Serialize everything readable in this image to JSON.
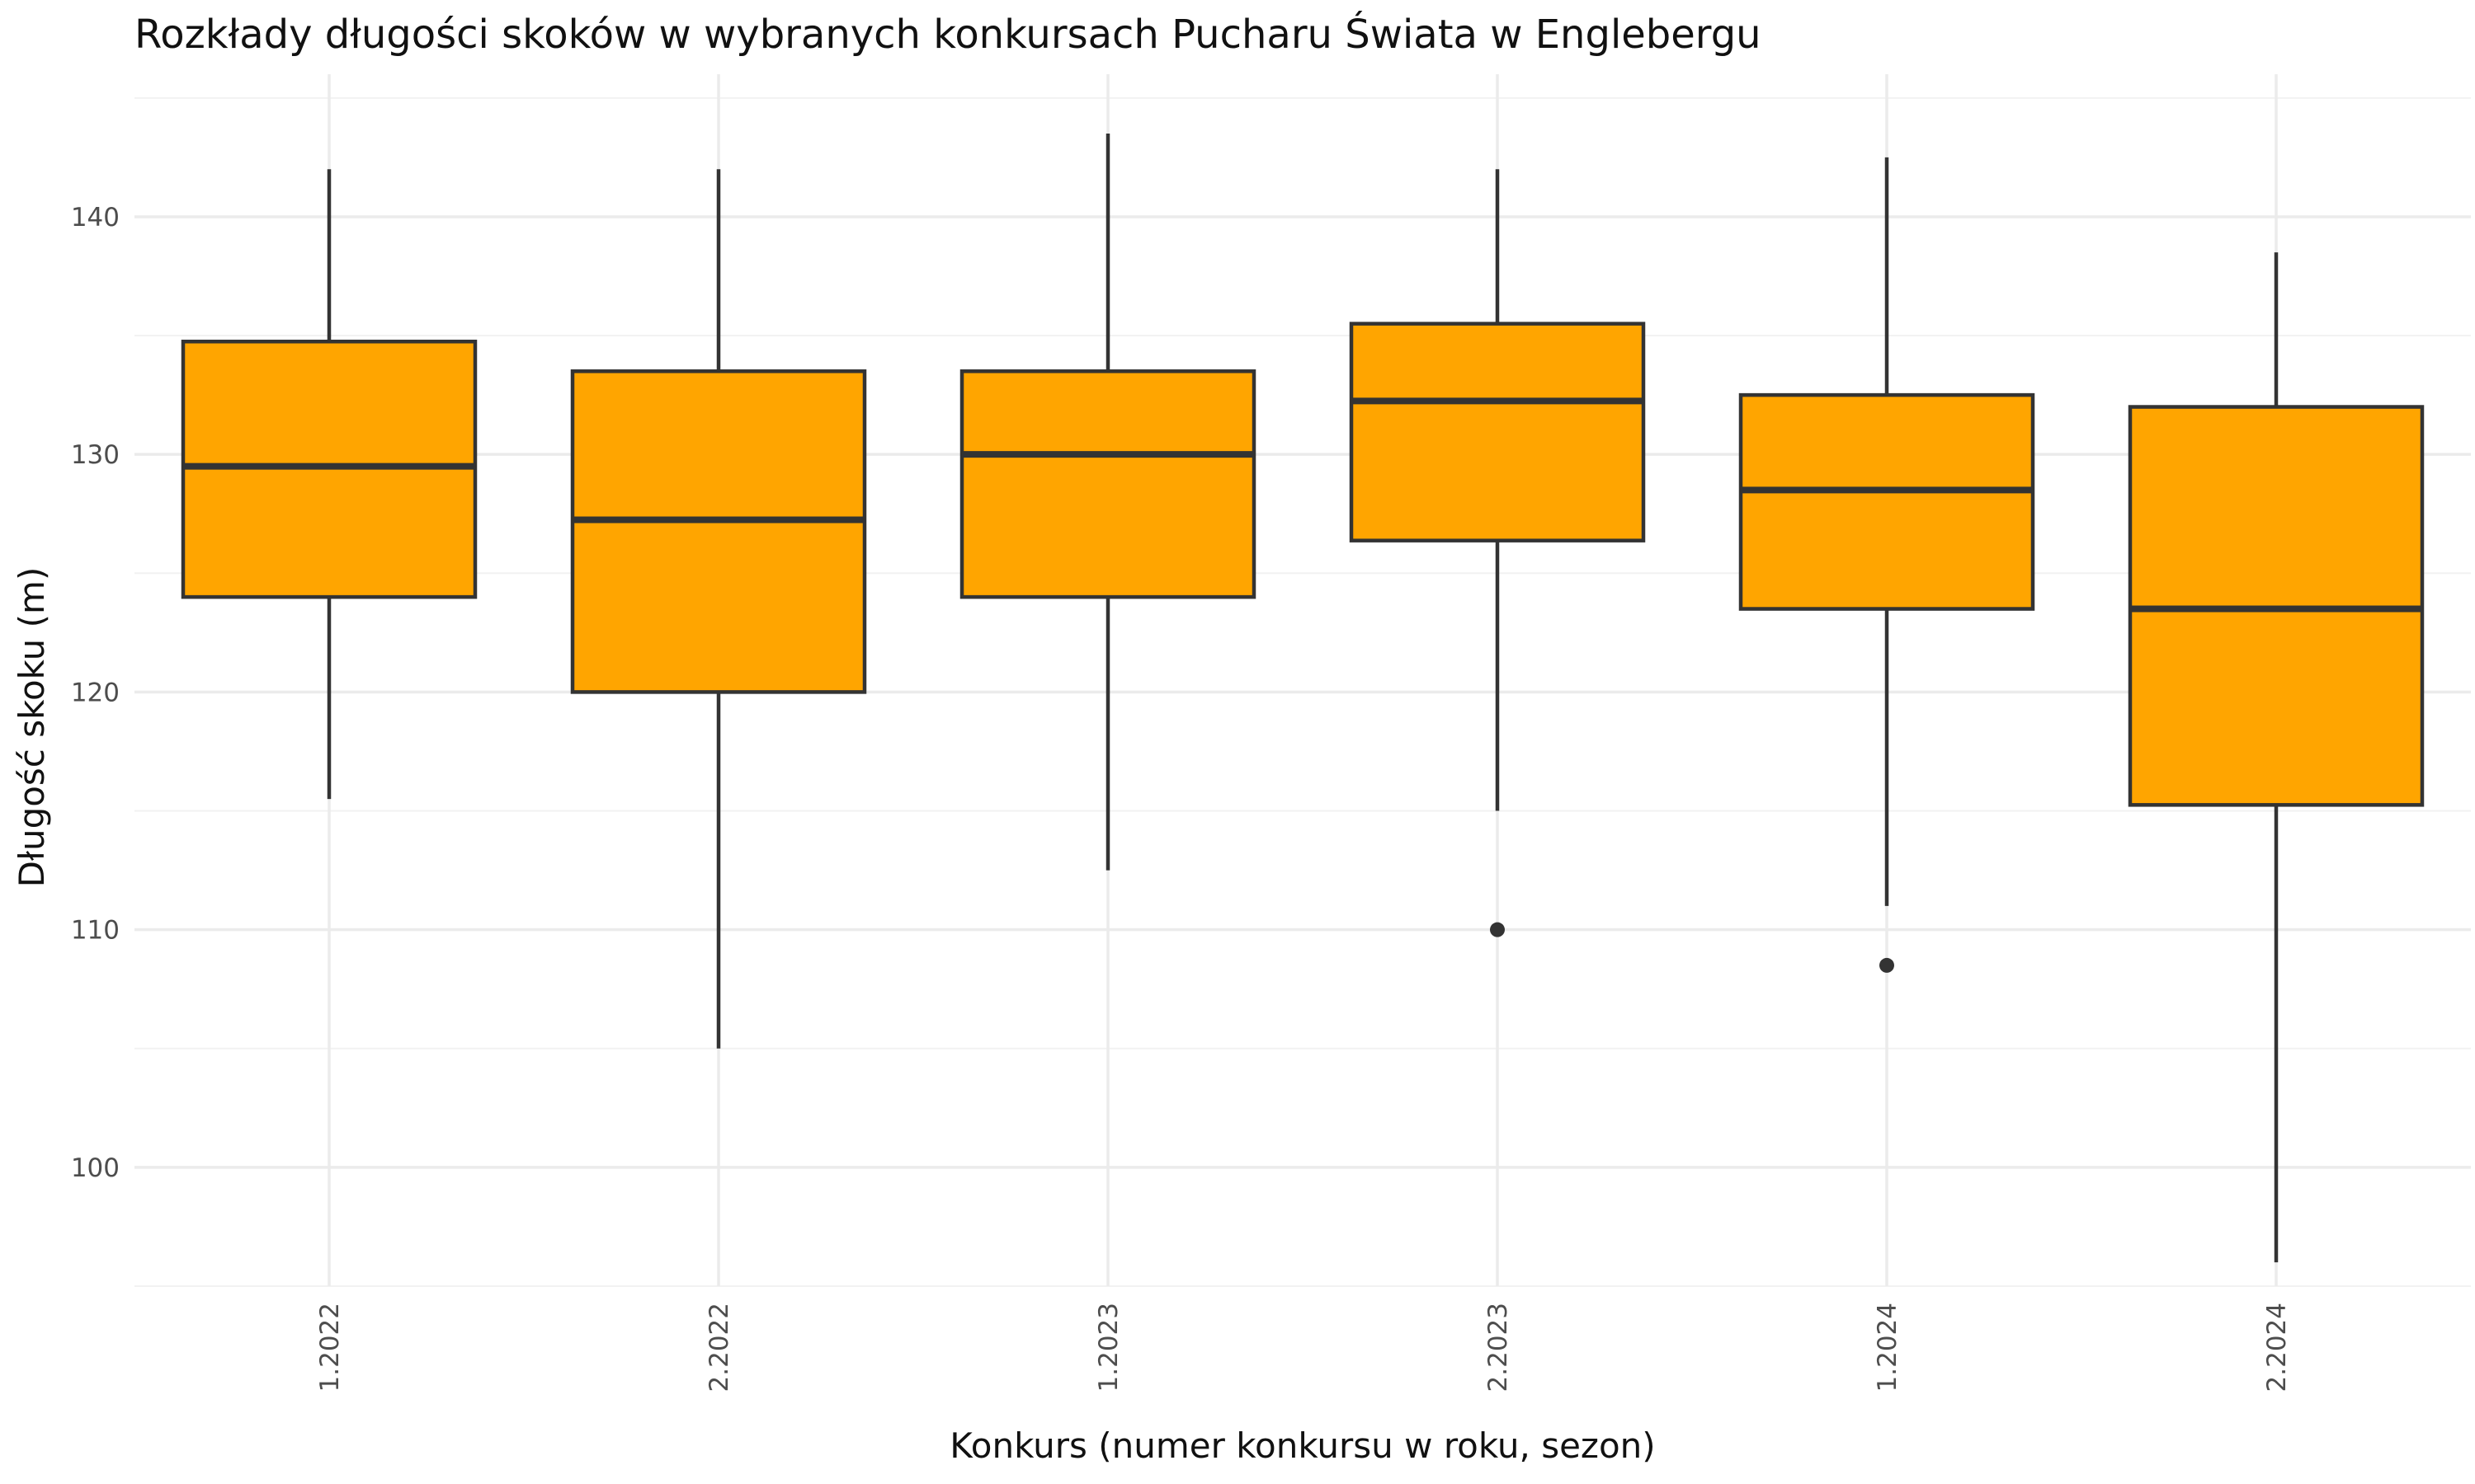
{
  "chart_data": {
    "type": "boxplot",
    "title": "Rozkłady długości skoków w wybranych konkursach Pucharu Świata w Englebergu",
    "xlabel": "Konkurs (numer konkursu w roku, sezon)",
    "ylabel": "Długość skoku (m)",
    "ylim": [
      95,
      146
    ],
    "y_ticks": [
      100,
      110,
      120,
      130,
      140
    ],
    "y_tick_labels": [
      "100",
      "110",
      "120",
      "130",
      "140"
    ],
    "grid": true,
    "box_color": "#FFA500",
    "line_color": "#333333",
    "categories": [
      "1.2022",
      "2.2022",
      "1.2023",
      "2.2023",
      "1.2024",
      "2.2024"
    ],
    "boxes": [
      {
        "category": "1.2022",
        "whisker_low": 115.5,
        "q1": 124.0,
        "median": 129.5,
        "q3": 134.75,
        "whisker_high": 142.0,
        "outliers": []
      },
      {
        "category": "2.2022",
        "whisker_low": 105.0,
        "q1": 120.0,
        "median": 127.25,
        "q3": 133.5,
        "whisker_high": 142.0,
        "outliers": []
      },
      {
        "category": "1.2023",
        "whisker_low": 112.5,
        "q1": 124.0,
        "median": 130.0,
        "q3": 133.5,
        "whisker_high": 143.5,
        "outliers": []
      },
      {
        "category": "2.2023",
        "whisker_low": 115.0,
        "q1": 126.375,
        "median": 132.25,
        "q3": 135.5,
        "whisker_high": 142.0,
        "outliers": [
          110.0
        ]
      },
      {
        "category": "1.2024",
        "whisker_low": 111.0,
        "q1": 123.5,
        "median": 128.5,
        "q3": 132.5,
        "whisker_high": 142.5,
        "outliers": [
          108.5
        ]
      },
      {
        "category": "2.2024",
        "whisker_low": 96.0,
        "q1": 115.25,
        "median": 123.5,
        "q3": 132.0,
        "whisker_high": 138.5,
        "outliers": []
      }
    ]
  }
}
